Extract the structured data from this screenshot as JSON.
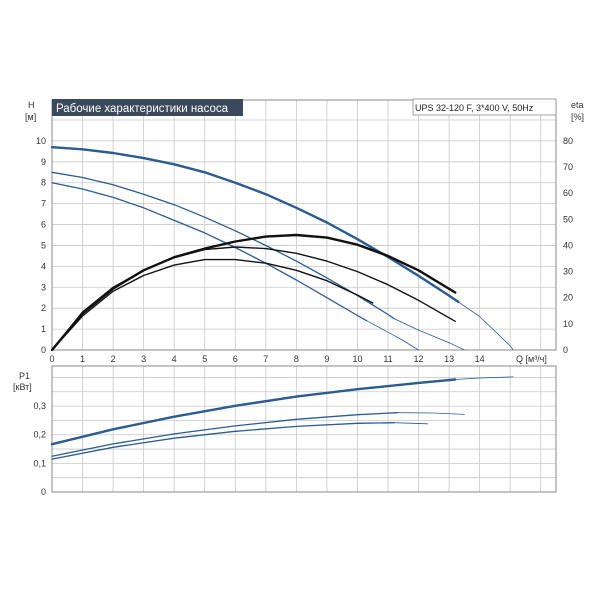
{
  "colors": {
    "background": "#ffffff",
    "grid": "#c8c8c8",
    "frame": "#8a8a8a",
    "title_bg": "#3a4a5c",
    "title_text": "#ffffff",
    "curve_dark": "#1d4f86",
    "curve_thin": "#2a5c92",
    "efficiency": "#111111",
    "text": "#333333"
  },
  "chart_data": [
    {
      "type": "line",
      "title": "Рабочие характеристики насоса",
      "model_label": "UPS 32-120 F, 3*400 V, 50Hz",
      "ylabel": "H",
      "yunit": "[м]",
      "xlabel": "Q [м³/ч]",
      "y2label": "eta",
      "y2unit": "[%]",
      "xlim": [
        0,
        16.5
      ],
      "ylim": [
        0,
        11
      ],
      "y2lim": [
        0,
        88
      ],
      "grid": true,
      "xticks": [
        0,
        1,
        2,
        3,
        4,
        5,
        6,
        7,
        8,
        9,
        10,
        11,
        12,
        13,
        14
      ],
      "yticks": [
        0,
        1,
        2,
        3,
        4,
        5,
        6,
        7,
        8,
        9,
        10
      ],
      "y2ticks": [
        0,
        10,
        20,
        30,
        40,
        50,
        60,
        70,
        80
      ],
      "head_series": [
        {
          "speed": 1,
          "x": [
            0,
            1,
            2,
            3,
            4,
            5,
            6,
            7,
            8,
            9,
            10,
            11,
            12,
            13,
            13.3
          ],
          "y": [
            9.7,
            9.6,
            9.42,
            9.18,
            8.88,
            8.5,
            8.0,
            7.45,
            6.8,
            6.1,
            5.3,
            4.45,
            3.55,
            2.6,
            2.3
          ]
        },
        {
          "speed": 1,
          "x": [
            13.3,
            14,
            15,
            15.1
          ],
          "y": [
            2.3,
            1.6,
            0.2,
            0
          ]
        },
        {
          "speed": 2,
          "x": [
            0,
            1,
            2,
            3,
            4,
            5,
            6,
            7,
            8,
            9,
            10,
            11,
            11.2
          ],
          "y": [
            8.5,
            8.25,
            7.9,
            7.45,
            6.95,
            6.35,
            5.7,
            5.0,
            4.25,
            3.45,
            2.6,
            1.7,
            1.5
          ]
        },
        {
          "speed": 2,
          "x": [
            11.2,
            12,
            13,
            13.5
          ],
          "y": [
            1.5,
            0.95,
            0.35,
            0
          ]
        },
        {
          "speed": 3,
          "x": [
            0,
            1,
            2,
            3,
            4,
            5,
            6,
            7,
            8,
            9,
            10,
            10.3
          ],
          "y": [
            8.0,
            7.7,
            7.3,
            6.8,
            6.2,
            5.6,
            4.9,
            4.15,
            3.35,
            2.5,
            1.65,
            1.4
          ]
        },
        {
          "speed": 3,
          "x": [
            10.3,
            11,
            11.5,
            12
          ],
          "y": [
            1.4,
            0.85,
            0.45,
            0
          ]
        }
      ],
      "efficiency_series": [
        {
          "speed": 1,
          "x": [
            0,
            1,
            2,
            3,
            4,
            5,
            6,
            7,
            8,
            9,
            10,
            11,
            12,
            13.2
          ],
          "y": [
            0,
            14,
            23.5,
            30.5,
            35.5,
            38.8,
            41.5,
            43.4,
            44.0,
            43.0,
            40.3,
            36.0,
            30.5,
            22.0
          ]
        },
        {
          "speed": 2,
          "x": [
            0,
            1,
            2,
            3,
            4,
            5,
            6,
            7,
            8,
            9,
            10,
            11,
            12,
            13.2
          ],
          "y": [
            0,
            14.5,
            24.0,
            30.5,
            35.3,
            38.4,
            39.4,
            38.8,
            37.0,
            34.0,
            30.0,
            25.0,
            19.0,
            11.0
          ]
        },
        {
          "speed": 3,
          "x": [
            0,
            1,
            2,
            3,
            4,
            5,
            6,
            7,
            8,
            9,
            10,
            10.5
          ],
          "y": [
            0,
            13.0,
            22.5,
            28.5,
            32.5,
            34.6,
            34.6,
            33.2,
            30.5,
            26.5,
            21.0,
            18.0
          ]
        }
      ]
    },
    {
      "type": "line",
      "ylabel": "P1",
      "yunit": "[кВт]",
      "xlim": [
        0,
        16.5
      ],
      "ylim": [
        0,
        0.44
      ],
      "grid": true,
      "yticks": [
        0,
        0.1,
        0.2,
        0.3
      ],
      "ytick_labels": [
        "0",
        "0,1",
        "0,2",
        "0,3"
      ],
      "power_series": [
        {
          "speed": 1,
          "x": [
            0,
            2,
            4,
            6,
            8,
            10,
            12,
            13.2
          ],
          "y": [
            0.167,
            0.219,
            0.263,
            0.301,
            0.333,
            0.359,
            0.381,
            0.393
          ]
        },
        {
          "speed": 1,
          "x": [
            13.2,
            14,
            15.1
          ],
          "y": [
            0.393,
            0.398,
            0.402
          ]
        },
        {
          "speed": 2,
          "x": [
            0,
            2,
            4,
            6,
            8,
            10,
            11.3
          ],
          "y": [
            0.125,
            0.168,
            0.203,
            0.231,
            0.254,
            0.27,
            0.277
          ]
        },
        {
          "speed": 2,
          "x": [
            11.3,
            12.5,
            13.5
          ],
          "y": [
            0.277,
            0.276,
            0.271
          ]
        },
        {
          "speed": 3,
          "x": [
            0,
            2,
            4,
            6,
            8,
            10,
            11.2
          ],
          "y": [
            0.115,
            0.156,
            0.188,
            0.212,
            0.229,
            0.24,
            0.242
          ]
        },
        {
          "speed": 3,
          "x": [
            11.2,
            12.3
          ],
          "y": [
            0.242,
            0.238
          ]
        }
      ]
    }
  ]
}
